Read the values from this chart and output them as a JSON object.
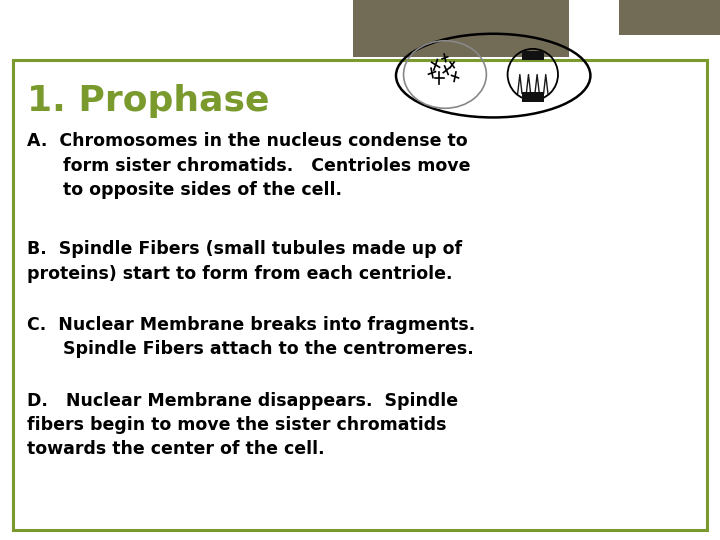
{
  "title": "1. Prophase",
  "title_color": "#7a9a2e",
  "background_color": "#ffffff",
  "border_color": "#7a9a2e",
  "tab_color": "#726b55",
  "body_text_color": "#000000",
  "font_size_title": 26,
  "font_size_body": 12.5,
  "section_A_line1": "A.  Chromosomes in the nucleus condense to",
  "section_A_line2": "      form sister chromatids.   Centrioles move",
  "section_A_line3": "      to opposite sides of the cell.",
  "section_B_line1": "B.  Spindle Fibers (small tubules made up of",
  "section_B_line2": "proteins) start to form from each centriole.",
  "section_C_line1": "C.  Nuclear Membrane breaks into fragments.",
  "section_C_line2": "      Spindle Fibers attach to the centromeres.",
  "section_D_line1": "D.   Nuclear Membrane disappears.  Spindle",
  "section_D_line2": "fibers begin to move the sister chromatids",
  "section_D_line3": "towards the center of the cell."
}
